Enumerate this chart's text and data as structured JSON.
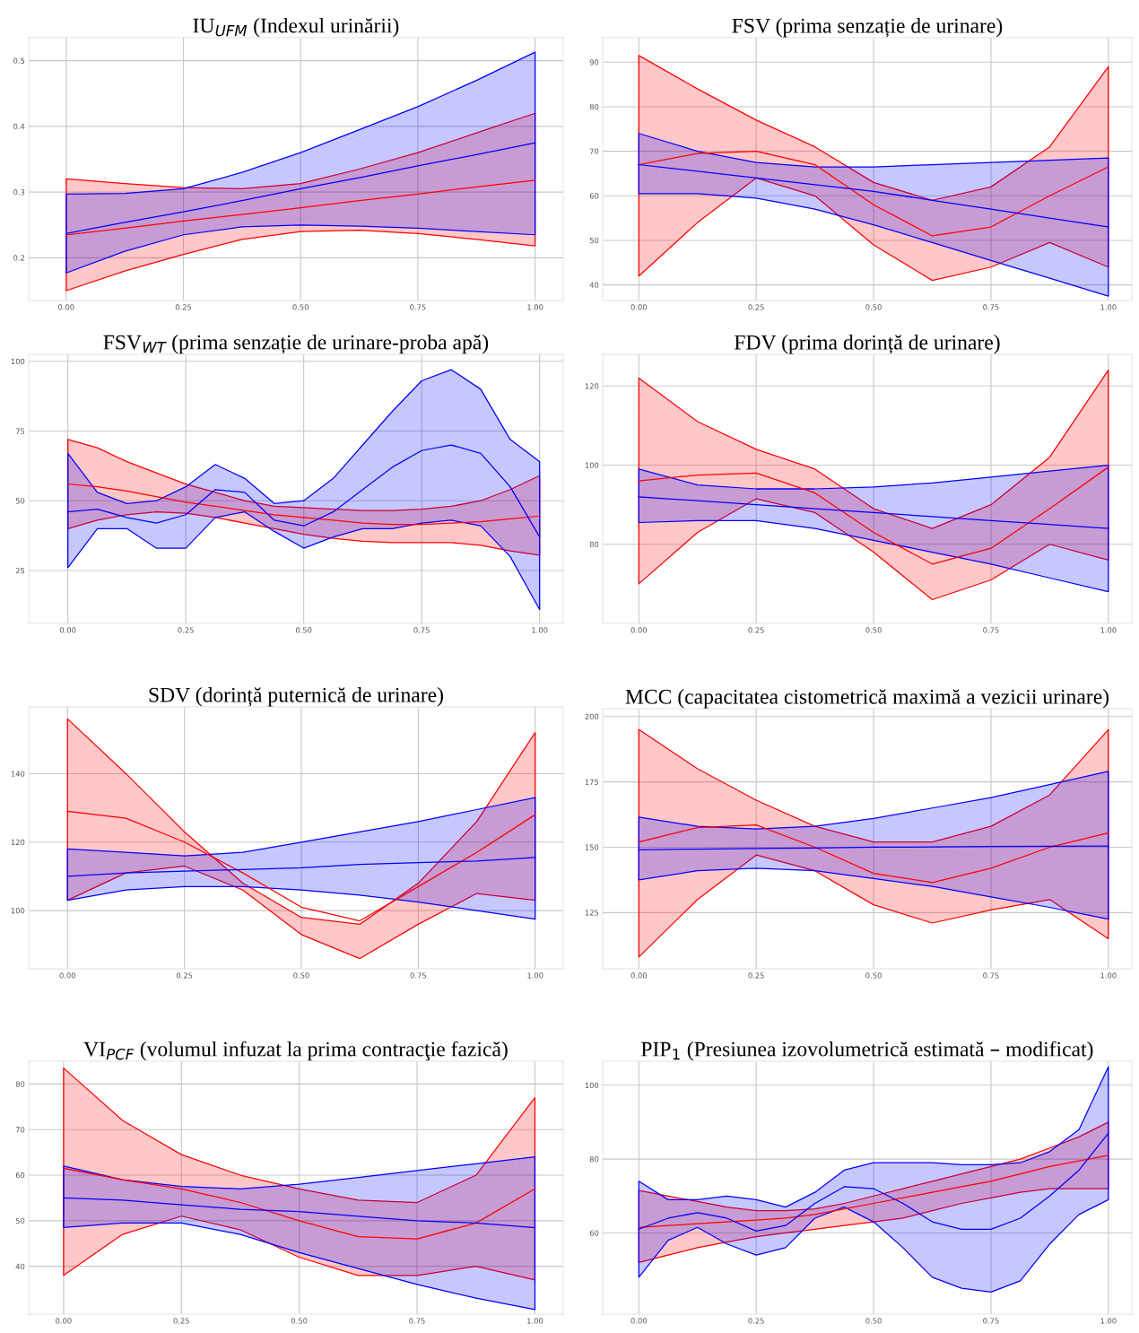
{
  "chart_data": [
    {
      "type": "line",
      "title": "IU$_{UFM}$ (Indexul urinării)",
      "grid": true,
      "xlim": [
        -0.08,
        1.06
      ],
      "ylim": [
        0.135,
        0.535
      ],
      "xticks": [
        {
          "value": 0,
          "label": "0.00"
        },
        {
          "value": 0.25,
          "label": "0.25"
        },
        {
          "value": 0.5,
          "label": "0.50"
        },
        {
          "value": 0.75,
          "label": "0.75"
        },
        {
          "value": 1,
          "label": "1.00"
        }
      ],
      "yticks": [
        0.2,
        0.3,
        0.4,
        0.5
      ],
      "x": [
        0,
        0.125,
        0.25,
        0.375,
        0.5,
        0.625,
        0.75,
        0.875,
        1
      ],
      "series": [
        {
          "color": "#ff0000",
          "values": [
            0.235,
            0.245,
            0.256,
            0.266,
            0.276,
            0.287,
            0.297,
            0.308,
            0.318
          ],
          "lower": [
            0.15,
            0.18,
            0.205,
            0.228,
            0.24,
            0.242,
            0.237,
            0.228,
            0.218
          ],
          "upper": [
            0.32,
            0.313,
            0.307,
            0.305,
            0.313,
            0.335,
            0.36,
            0.39,
            0.42
          ]
        },
        {
          "color": "#0000ff",
          "values": [
            0.237,
            0.254,
            0.27,
            0.287,
            0.305,
            0.322,
            0.34,
            0.357,
            0.375
          ],
          "lower": [
            0.177,
            0.21,
            0.235,
            0.247,
            0.25,
            0.248,
            0.245,
            0.24,
            0.235
          ],
          "upper": [
            0.297,
            0.298,
            0.305,
            0.33,
            0.36,
            0.395,
            0.43,
            0.47,
            0.513
          ]
        }
      ]
    },
    {
      "type": "line",
      "title": "FSV (prima senzație de urinare)",
      "grid": true,
      "xlim": [
        -0.077,
        1.05
      ],
      "ylim": [
        36.5,
        95.5
      ],
      "xticks": [
        {
          "value": 0,
          "label": "0.00"
        },
        {
          "value": 0.25,
          "label": "0.25"
        },
        {
          "value": 0.5,
          "label": "0.50"
        },
        {
          "value": 0.75,
          "label": "0.75"
        },
        {
          "value": 1,
          "label": "1.00"
        }
      ],
      "yticks": [
        40,
        50,
        60,
        70,
        80,
        90
      ],
      "x": [
        0,
        0.125,
        0.25,
        0.375,
        0.5,
        0.625,
        0.75,
        0.875,
        1
      ],
      "series": [
        {
          "color": "#ff0000",
          "values": [
            67,
            69.5,
            70,
            67,
            58,
            51,
            53,
            60,
            66.5
          ],
          "lower": [
            42,
            54,
            64,
            60,
            49,
            41,
            44,
            49.5,
            44
          ],
          "upper": [
            91.5,
            84,
            77,
            71,
            63,
            59,
            62,
            71,
            89
          ]
        },
        {
          "color": "#0000ff",
          "values": [
            67,
            65.5,
            64,
            62.5,
            61,
            59,
            57,
            55,
            53
          ],
          "lower": [
            60.5,
            60.5,
            59.5,
            57,
            53.5,
            49.5,
            45.5,
            41.5,
            37.5
          ],
          "upper": [
            74,
            70,
            67.5,
            66.5,
            66.5,
            67,
            67.5,
            68,
            68.5
          ]
        }
      ]
    },
    {
      "type": "line",
      "title": "FSV$_{WT}$ (prima senzație de urinare-proba apă)",
      "grid": true,
      "xlim": [
        -0.083,
        1.05
      ],
      "ylim": [
        6,
        102.5
      ],
      "xticks": [
        {
          "value": 0,
          "label": "0.00"
        },
        {
          "value": 0.25,
          "label": "0.25"
        },
        {
          "value": 0.5,
          "label": "0.50"
        },
        {
          "value": 0.75,
          "label": "0.75"
        },
        {
          "value": 1,
          "label": "1.00"
        }
      ],
      "yticks": [
        25,
        50,
        75,
        100
      ],
      "x": [
        0,
        0.0625,
        0.125,
        0.1875,
        0.25,
        0.3125,
        0.375,
        0.4375,
        0.5,
        0.5625,
        0.625,
        0.6875,
        0.75,
        0.8125,
        0.875,
        0.9375,
        1
      ],
      "series": [
        {
          "color": "#ff0000",
          "values": [
            56,
            55,
            53.5,
            51.5,
            49.5,
            48,
            46.5,
            45,
            44,
            43,
            42,
            41.5,
            41.5,
            42,
            42.5,
            43.5,
            44.5
          ],
          "lower": [
            40,
            43,
            45,
            46,
            45.5,
            44,
            42,
            40,
            38,
            36.5,
            35.5,
            35,
            35,
            35,
            34,
            32,
            30.5
          ],
          "upper": [
            72,
            69,
            64,
            60,
            56,
            53,
            50,
            48,
            47.5,
            47,
            46.5,
            46.5,
            47,
            48,
            50,
            54,
            59
          ]
        },
        {
          "color": "#0000ff",
          "values": [
            46,
            47,
            44,
            42,
            45,
            54,
            53,
            43,
            41,
            46,
            54,
            62,
            68,
            70,
            67,
            55,
            37
          ],
          "lower": [
            26,
            40,
            40,
            33,
            33,
            44,
            46,
            39,
            33,
            37,
            40,
            40,
            42,
            43,
            41,
            30,
            11
          ],
          "upper": [
            67,
            53,
            49,
            50,
            55,
            63,
            58,
            49,
            50,
            58,
            70,
            82,
            93,
            97,
            90,
            72,
            64
          ]
        }
      ]
    },
    {
      "type": "line",
      "title": "FDV (prima dorință de urinare)",
      "grid": true,
      "xlim": [
        -0.077,
        1.05
      ],
      "ylim": [
        60,
        128
      ],
      "xticks": [
        {
          "value": 0,
          "label": "0.00"
        },
        {
          "value": 0.25,
          "label": "0.25"
        },
        {
          "value": 0.5,
          "label": "0.50"
        },
        {
          "value": 0.75,
          "label": "0.75"
        },
        {
          "value": 1,
          "label": "1.00"
        }
      ],
      "yticks": [
        80,
        100,
        120
      ],
      "x": [
        0,
        0.125,
        0.25,
        0.375,
        0.5,
        0.625,
        0.75,
        0.875,
        1
      ],
      "series": [
        {
          "color": "#ff0000",
          "values": [
            96,
            97.5,
            98,
            93,
            83,
            75,
            79,
            89,
            99.5
          ],
          "lower": [
            70,
            83,
            91.5,
            88,
            78,
            66,
            71,
            80,
            76
          ],
          "upper": [
            122,
            111,
            104,
            99,
            89,
            84,
            90,
            102,
            124
          ]
        },
        {
          "color": "#0000ff",
          "values": [
            92,
            91,
            90,
            89,
            88,
            87,
            86,
            85,
            84
          ],
          "lower": [
            85.5,
            86,
            86,
            84,
            81,
            78,
            75,
            71.5,
            68
          ],
          "upper": [
            99,
            95,
            94,
            94,
            94.5,
            95.5,
            97,
            98.5,
            100
          ]
        }
      ]
    },
    {
      "type": "line",
      "title": "SDV (dorință puternică de urinare)",
      "grid": true,
      "xlim": [
        -0.083,
        1.06
      ],
      "ylim": [
        83,
        159.5
      ],
      "xticks": [
        {
          "value": 0,
          "label": "0.00"
        },
        {
          "value": 0.25,
          "label": "0.25"
        },
        {
          "value": 0.5,
          "label": "0.50"
        },
        {
          "value": 0.75,
          "label": "0.75"
        },
        {
          "value": 1,
          "label": "1.00"
        }
      ],
      "yticks": [
        100,
        120,
        140
      ],
      "x": [
        0,
        0.125,
        0.25,
        0.375,
        0.5,
        0.625,
        0.75,
        0.875,
        1
      ],
      "series": [
        {
          "color": "#ff0000",
          "values": [
            129,
            127,
            120,
            111,
            101,
            97,
            107,
            117,
            128
          ],
          "lower": [
            103,
            111,
            113,
            106,
            93,
            86,
            96,
            105,
            103
          ],
          "upper": [
            156,
            140,
            123,
            108,
            98,
            96,
            108,
            126,
            152
          ]
        },
        {
          "color": "#0000ff",
          "values": [
            110,
            111,
            111.5,
            112,
            112.5,
            113.5,
            114,
            114.5,
            115.5
          ],
          "lower": [
            103,
            106,
            107,
            107,
            106,
            104.5,
            102.5,
            100,
            97.5
          ],
          "upper": [
            118,
            117,
            116,
            117,
            120,
            123,
            126,
            129.5,
            133
          ]
        }
      ]
    },
    {
      "type": "line",
      "title": "MCC (capacitatea cistometrică maximă a vezicii urinare)",
      "grid": true,
      "xlim": [
        -0.077,
        1.05
      ],
      "ylim": [
        103.5,
        203
      ],
      "xticks": [
        {
          "value": 0,
          "label": "0.00"
        },
        {
          "value": 0.25,
          "label": "0.25"
        },
        {
          "value": 0.5,
          "label": "0.50"
        },
        {
          "value": 0.75,
          "label": "0.75"
        },
        {
          "value": 1,
          "label": "1.00"
        }
      ],
      "yticks": [
        125,
        150,
        175,
        200
      ],
      "x": [
        0,
        0.125,
        0.25,
        0.375,
        0.5,
        0.625,
        0.75,
        0.875,
        1
      ],
      "series": [
        {
          "color": "#ff0000",
          "values": [
            152,
            157.5,
            158.5,
            150,
            140,
            136.5,
            142,
            150,
            155.5
          ],
          "lower": [
            108,
            130,
            147,
            141,
            128,
            121,
            126,
            130,
            115
          ],
          "upper": [
            195,
            180,
            168,
            158,
            152,
            152,
            158,
            170,
            195
          ]
        },
        {
          "color": "#0000ff",
          "values": [
            149,
            149.3,
            149.5,
            149.7,
            150,
            150.1,
            150.3,
            150.4,
            150.5
          ],
          "lower": [
            137.5,
            141,
            142,
            141,
            138,
            135,
            131,
            127,
            122.5
          ],
          "upper": [
            161.5,
            158,
            157,
            158,
            161,
            165,
            169,
            174,
            179
          ]
        }
      ]
    },
    {
      "type": "line",
      "title": "VI$_{PCF}$ (volumul infuzat la prima contracţie fazică)",
      "grid": true,
      "xlim": [
        -0.074,
        1.06
      ],
      "ylim": [
        29.5,
        85
      ],
      "xticks": [
        {
          "value": 0,
          "label": "0.00"
        },
        {
          "value": 0.25,
          "label": "0.25"
        },
        {
          "value": 0.5,
          "label": "0.50"
        },
        {
          "value": 0.75,
          "label": "0.75"
        },
        {
          "value": 1,
          "label": "1.00"
        }
      ],
      "yticks": [
        40,
        50,
        60,
        70,
        80
      ],
      "x": [
        0,
        0.125,
        0.25,
        0.375,
        0.5,
        0.625,
        0.75,
        0.875,
        1
      ],
      "series": [
        {
          "color": "#ff0000",
          "values": [
            61.5,
            59,
            57,
            54,
            50,
            46.5,
            46,
            49.5,
            57
          ],
          "lower": [
            38,
            47,
            51,
            48,
            42,
            38,
            38,
            40,
            37
          ],
          "upper": [
            83.5,
            72,
            64.5,
            60,
            57,
            54.5,
            54,
            60,
            77
          ]
        },
        {
          "color": "#0000ff",
          "values": [
            55,
            54.5,
            53.5,
            52.5,
            52,
            51,
            50,
            49.5,
            48.5
          ],
          "lower": [
            48.5,
            49.5,
            49.5,
            47,
            43,
            39.5,
            36,
            33,
            30.5
          ],
          "upper": [
            62,
            59,
            57.5,
            57,
            58,
            59.5,
            61,
            62.5,
            64
          ]
        }
      ]
    },
    {
      "type": "line",
      "title": "PIP$_{1}$ (Presiunea izovolumetrică estimată – modificat)",
      "grid": true,
      "xlim": [
        -0.077,
        1.05
      ],
      "ylim": [
        38,
        106.5
      ],
      "xticks": [
        {
          "value": 0,
          "label": "0.00"
        },
        {
          "value": 0.25,
          "label": "0.25"
        },
        {
          "value": 0.5,
          "label": "0.50"
        },
        {
          "value": 0.75,
          "label": "0.75"
        },
        {
          "value": 1,
          "label": "1.00"
        }
      ],
      "yticks": [
        60,
        80,
        100
      ],
      "x": [
        0,
        0.0625,
        0.125,
        0.1875,
        0.25,
        0.3125,
        0.375,
        0.4375,
        0.5,
        0.5625,
        0.625,
        0.6875,
        0.75,
        0.8125,
        0.875,
        0.9375,
        1
      ],
      "series": [
        {
          "color": "#ff0000",
          "values": [
            61.5,
            62,
            62.5,
            63,
            63.5,
            64,
            65,
            66.5,
            68,
            69.5,
            71,
            72.5,
            74,
            76,
            78,
            79.5,
            81
          ],
          "lower": [
            52,
            54,
            56,
            57.5,
            59,
            60,
            61,
            62,
            63,
            64,
            66,
            68,
            69.5,
            71,
            72,
            72,
            72
          ],
          "upper": [
            71.5,
            70,
            68.5,
            67,
            66,
            66,
            66.5,
            68,
            70,
            72,
            74,
            76,
            78,
            80,
            83,
            86,
            90
          ]
        },
        {
          "color": "#0000ff",
          "values": [
            61,
            64,
            65.5,
            64,
            60.5,
            62,
            68,
            72.5,
            72,
            68,
            63,
            61,
            61,
            64,
            70,
            77,
            87
          ],
          "lower": [
            48,
            58,
            61.5,
            57,
            54,
            56,
            64,
            67,
            63,
            56,
            48,
            45,
            44,
            47,
            57,
            65,
            69
          ],
          "upper": [
            74,
            69,
            69,
            70,
            69,
            67,
            71,
            77,
            79,
            79,
            79,
            78.5,
            78.5,
            79,
            82,
            88,
            105
          ]
        }
      ]
    }
  ]
}
